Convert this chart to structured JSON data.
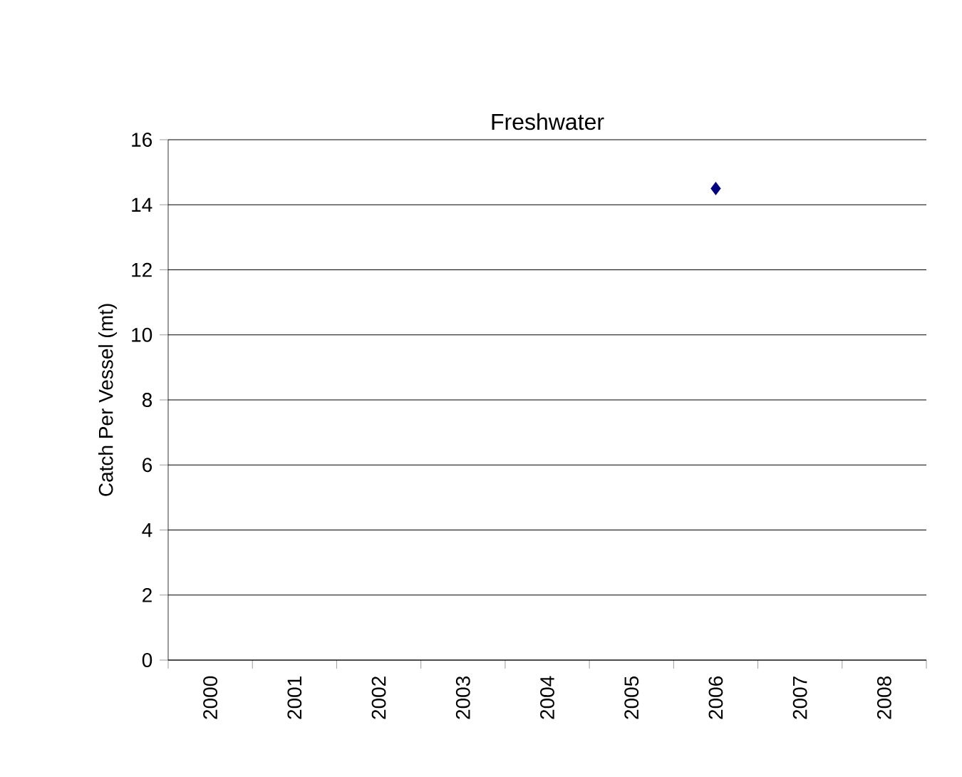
{
  "chart_data": {
    "type": "line",
    "title": "Freshwater",
    "ylabel": "Catch Per Vessel (mt)",
    "categories": [
      "2000",
      "2001",
      "2002",
      "2003",
      "2004",
      "2005",
      "2006",
      "2007",
      "2008"
    ],
    "series": [
      {
        "color": "#000080",
        "values": [
          null,
          null,
          null,
          null,
          null,
          null,
          14.5,
          null,
          null
        ]
      }
    ],
    "ylim": [
      0,
      16
    ],
    "yticks": [
      0,
      2,
      4,
      6,
      8,
      10,
      12,
      14,
      16
    ],
    "grid": "y",
    "marker": "diamond"
  }
}
